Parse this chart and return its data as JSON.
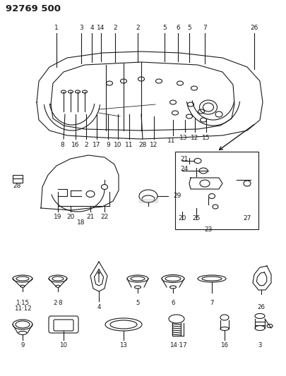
{
  "title": "92769 500",
  "bg_color": "#ffffff",
  "line_color": "#1a1a1a",
  "title_fontsize": 9.5,
  "label_fontsize": 6.5
}
